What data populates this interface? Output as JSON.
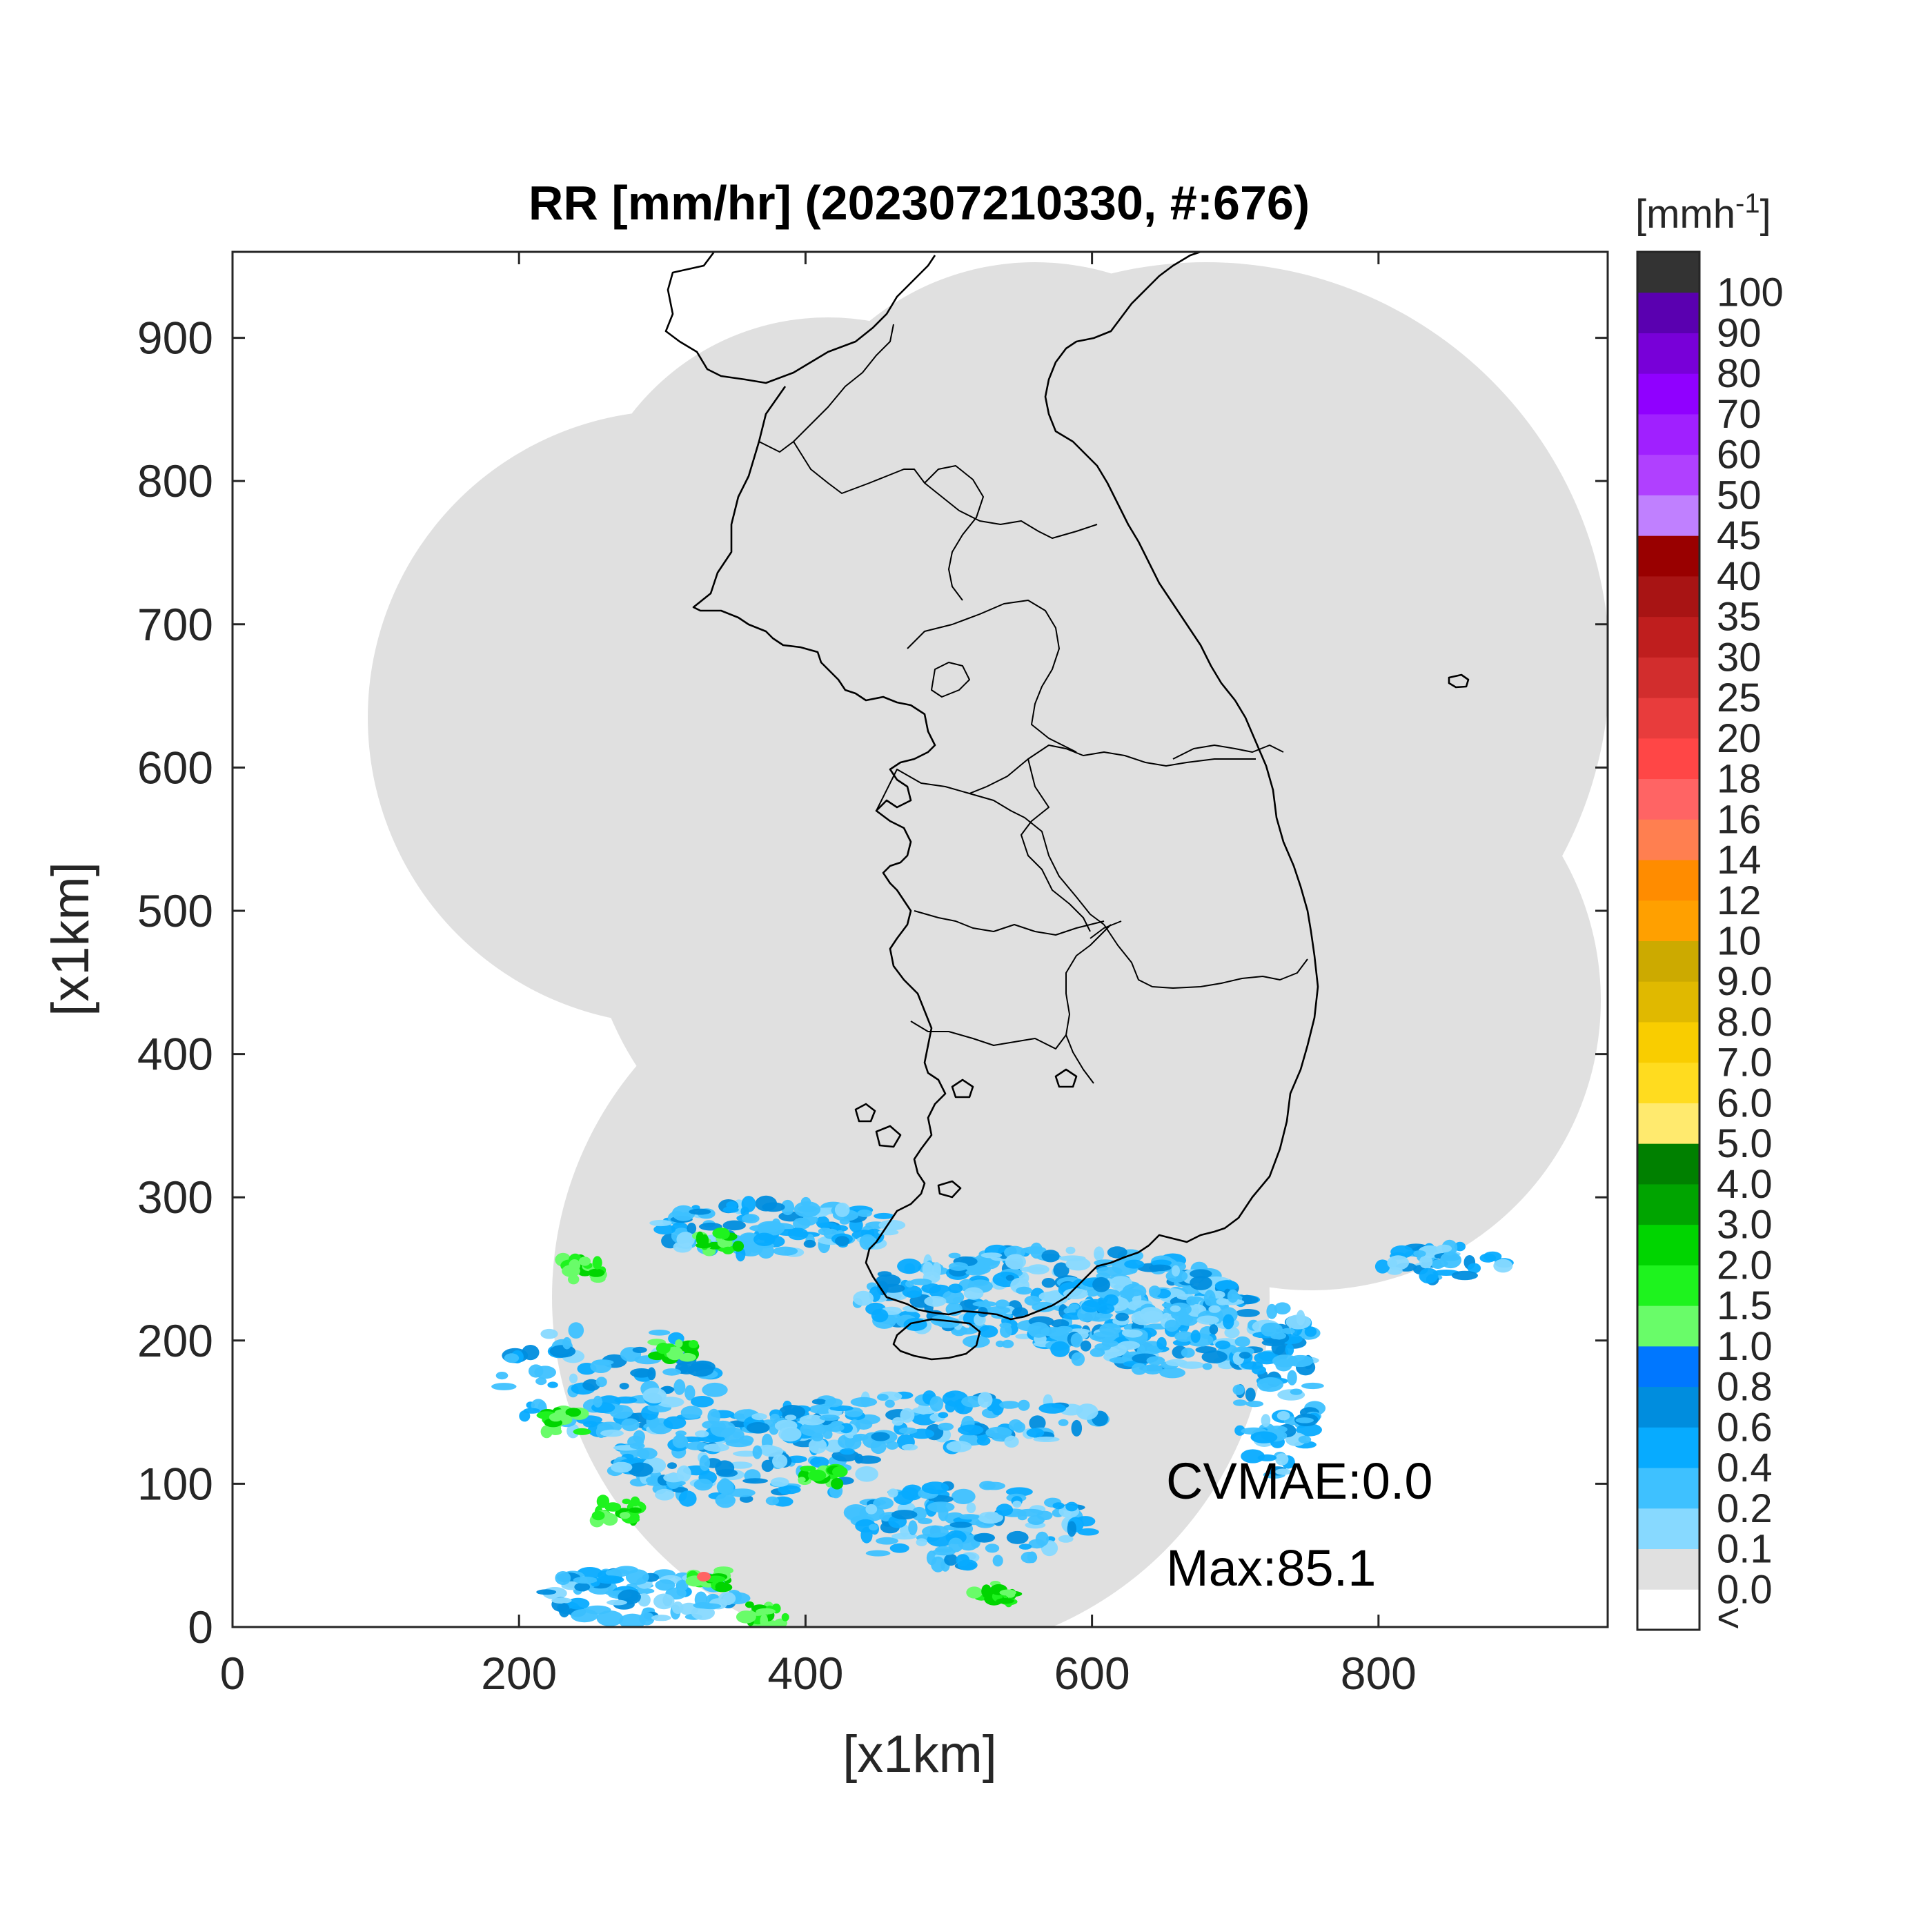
{
  "title": "RR [mm/hr] (202307210330, #:676)",
  "xlabel": "[x1km]",
  "ylabel": "[x1km]",
  "colorbar_unit": "[mmh",
  "colorbar_unit_exp": "-1",
  "colorbar_unit_close": "]",
  "annotations": {
    "cvmae": "CVMAE:0.0",
    "max": "Max:85.1"
  },
  "chart_data": {
    "type": "heatmap",
    "xlim": [
      0,
      960
    ],
    "ylim": [
      0,
      960
    ],
    "x_ticks": [
      "0",
      "200",
      "400",
      "600",
      "800"
    ],
    "y_ticks": [
      "0",
      "100",
      "200",
      "300",
      "400",
      "500",
      "600",
      "700",
      "800",
      "900"
    ],
    "colorbar_levels": [
      "<",
      "0.0",
      "0.1",
      "0.2",
      "0.4",
      "0.6",
      "0.8",
      "1.0",
      "1.5",
      "2.0",
      "3.0",
      "4.0",
      "5.0",
      "6.0",
      "7.0",
      "8.0",
      "9.0",
      "10",
      "12",
      "14",
      "16",
      "18",
      "20",
      "25",
      "30",
      "35",
      "40",
      "45",
      "50",
      "60",
      "70",
      "80",
      "90",
      "100"
    ],
    "colorbar_colors": [
      "#ffffff",
      "#e0e0e0",
      "#87d9ff",
      "#3ec1ff",
      "#07abff",
      "#008dde",
      "#0077ff",
      "#69fc69",
      "#1ef31e",
      "#00d500",
      "#00a400",
      "#008000",
      "#ffea6e",
      "#ffdc1f",
      "#f9cd00",
      "#e0b900",
      "#ccaa00",
      "#ffa000",
      "#ff8c00",
      "#ff7f50",
      "#ff6464",
      "#ff4646",
      "#e83c3c",
      "#d22d2d",
      "#bf1e1e",
      "#a81414",
      "#990000",
      "#c080ff",
      "#b040ff",
      "#a020ff",
      "#9000ff",
      "#7800d8",
      "#5a00b0",
      "#333333"
    ]
  }
}
